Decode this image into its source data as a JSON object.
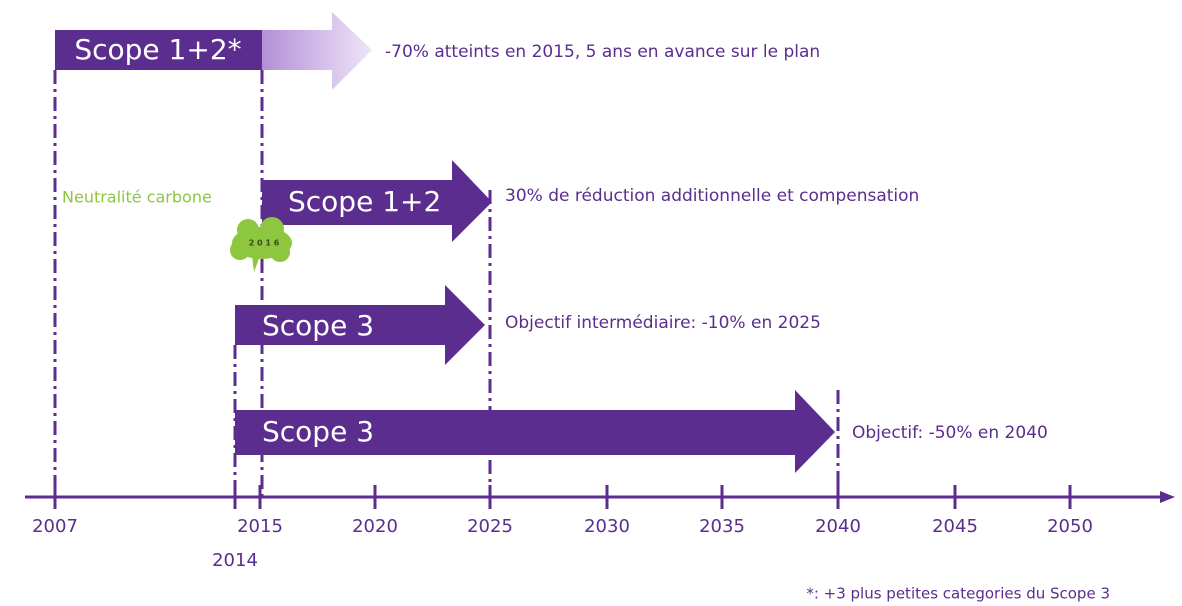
{
  "arrows": [
    {
      "label": "Scope 1+2*",
      "note": "-70% atteints en 2015, 5 ans en avance sur le plan"
    },
    {
      "label": "Scope 1+2",
      "note": "30% de réduction additionnelle et compensation"
    },
    {
      "label": "Scope 3",
      "note": "Objectif intermédiaire: -10% en 2025"
    },
    {
      "label": "Scope 3",
      "note": "Objectif: -50% en 2040"
    }
  ],
  "neutrality": {
    "label": "Neutralité carbone",
    "badge": "2 0 1 6"
  },
  "axis": {
    "years": [
      "2007",
      "2014",
      "2015",
      "2020",
      "2025",
      "2030",
      "2035",
      "2040",
      "2045",
      "2050"
    ]
  },
  "footnote": "*: +3 plus petites categories du Scope 3"
}
